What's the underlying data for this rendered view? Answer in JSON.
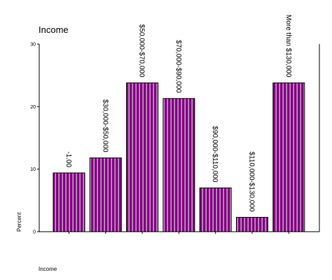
{
  "chart_data": {
    "type": "bar",
    "title": "Income",
    "xlabel": "Income",
    "ylabel": "Percent",
    "ylim": [
      0,
      30
    ],
    "yticks": [
      0,
      10,
      20,
      30
    ],
    "categories": [
      "-1.00",
      "$30,000-$50,000",
      "$50,000-$70,000",
      "$70,000-$90,000",
      "$90,000-$110,000",
      "$110,000-$130,000",
      "More than $130,000"
    ],
    "values": [
      9.4,
      11.8,
      23.8,
      21.3,
      7.0,
      2.3,
      23.8
    ],
    "bar_labels_rotated": true,
    "grid": false,
    "legend": "none",
    "colors": {
      "bar_fill": "#800080",
      "bar_stripe": "#ffffff",
      "bar_edge": "#000000",
      "axis": "#000000"
    }
  }
}
